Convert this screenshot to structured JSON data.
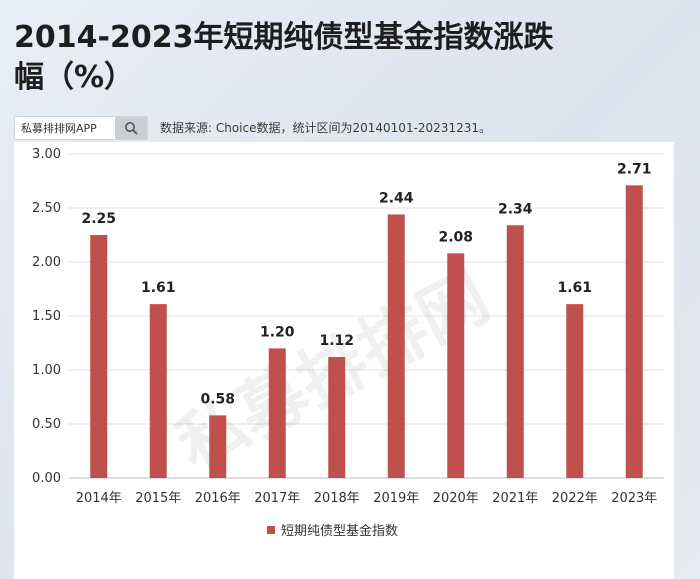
{
  "header": {
    "title": "2014-2023年短期纯债型基金指数涨跌幅（%）",
    "search_brand": "私募排排网APP",
    "source_note": "数据来源: Choice数据，统计区间为20140101-20231231。"
  },
  "watermark": "私募排排网",
  "colors": {
    "bar": "#c0504d",
    "grid": "#e2e2e2",
    "axis": "#bfbfbf"
  },
  "icons": {
    "search": "search-icon"
  },
  "chart_data": {
    "type": "bar",
    "categories": [
      "2014年",
      "2015年",
      "2016年",
      "2017年",
      "2018年",
      "2019年",
      "2020年",
      "2021年",
      "2022年",
      "2023年"
    ],
    "series": [
      {
        "name": "短期纯债型基金指数",
        "values": [
          2.25,
          1.61,
          0.58,
          1.2,
          1.12,
          2.44,
          2.08,
          2.34,
          1.61,
          2.71
        ]
      }
    ],
    "data_labels": [
      "2.25",
      "1.61",
      "0.58",
      "1.20",
      "1.12",
      "2.44",
      "2.08",
      "2.34",
      "1.61",
      "2.71"
    ],
    "ylim": [
      0,
      3.0
    ],
    "yticks": [
      "0.00",
      "0.50",
      "1.00",
      "1.50",
      "2.00",
      "2.50",
      "3.00"
    ],
    "grid": true,
    "legend": "bottom"
  }
}
